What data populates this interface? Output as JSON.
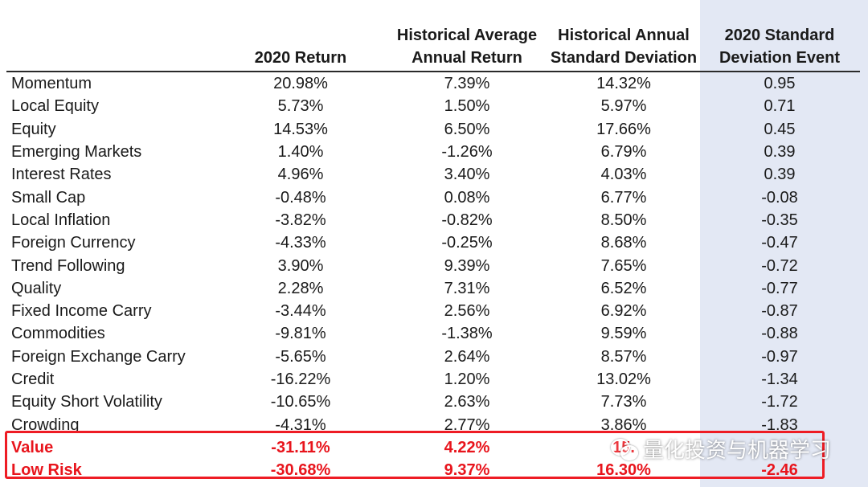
{
  "table": {
    "headers": [
      [],
      [
        "2020 Return"
      ],
      [
        "Historical Average",
        "Annual Return"
      ],
      [
        "Historical Annual",
        "Standard Deviation"
      ],
      [
        "2020 Standard",
        "Deviation Event"
      ]
    ],
    "rows": [
      [
        "Momentum",
        "20.98%",
        "7.39%",
        "14.32%",
        "0.95"
      ],
      [
        "Local Equity",
        "5.73%",
        "1.50%",
        "5.97%",
        "0.71"
      ],
      [
        "Equity",
        "14.53%",
        "6.50%",
        "17.66%",
        "0.45"
      ],
      [
        "Emerging Markets",
        "1.40%",
        "-1.26%",
        "6.79%",
        "0.39"
      ],
      [
        "Interest Rates",
        "4.96%",
        "3.40%",
        "4.03%",
        "0.39"
      ],
      [
        "Small Cap",
        "-0.48%",
        "0.08%",
        "6.77%",
        "-0.08"
      ],
      [
        "Local Inflation",
        "-3.82%",
        "-0.82%",
        "8.50%",
        "-0.35"
      ],
      [
        "Foreign Currency",
        "-4.33%",
        "-0.25%",
        "8.68%",
        "-0.47"
      ],
      [
        "Trend Following",
        "3.90%",
        "9.39%",
        "7.65%",
        "-0.72"
      ],
      [
        "Quality",
        "2.28%",
        "7.31%",
        "6.52%",
        "-0.77"
      ],
      [
        "Fixed Income Carry",
        "-3.44%",
        "2.56%",
        "6.92%",
        "-0.87"
      ],
      [
        "Commodities",
        "-9.81%",
        "-1.38%",
        "9.59%",
        "-0.88"
      ],
      [
        "Foreign Exchange Carry",
        "-5.65%",
        "2.64%",
        "8.57%",
        "-0.97"
      ],
      [
        "Credit",
        "-16.22%",
        "1.20%",
        "13.02%",
        "-1.34"
      ],
      [
        "Equity Short Volatility",
        "-10.65%",
        "2.63%",
        "7.73%",
        "-1.72"
      ],
      [
        "Crowding",
        "-4.31%",
        "2.77%",
        "3.86%",
        "-1.83"
      ]
    ],
    "highlighted_rows": [
      [
        "Value",
        "-31.11%",
        "4.22%",
        "15.",
        ""
      ],
      [
        "Low Risk",
        "-30.68%",
        "9.37%",
        "16.30%",
        "-2.46"
      ]
    ]
  },
  "watermark": {
    "text": "量化投资与机器学习",
    "icon": "wechat-icon"
  },
  "colors": {
    "highlight": "#e8141c",
    "box": "#ee1c24",
    "shade": "#e3e8f4"
  }
}
